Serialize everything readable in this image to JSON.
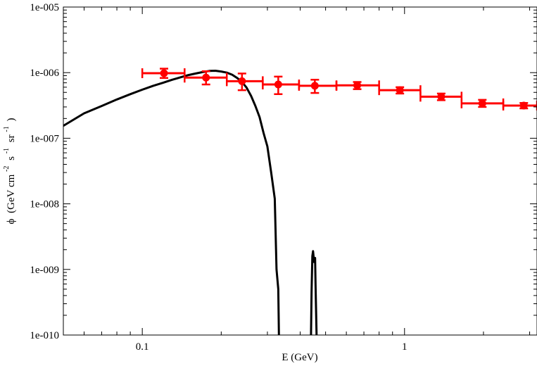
{
  "chart_data": {
    "type": "line",
    "xlabel": "E (GeV)",
    "ylabel": {
      "phi": "ϕ",
      "prefix": "(GeV cm",
      "exp1": "-2",
      "s": "s",
      "exp2": "-1",
      "sr": "sr",
      "exp3": "-1",
      "suffix": ")"
    },
    "xscale": "log",
    "yscale": "log",
    "xlim": [
      0.05,
      3.2
    ],
    "ylim": [
      1e-10,
      1e-05
    ],
    "grid": false,
    "legend": "none",
    "x_ticks": [
      {
        "value": 0.1,
        "label": "0.1"
      },
      {
        "value": 1,
        "label": "1"
      }
    ],
    "y_ticks": [
      {
        "value": 1e-10,
        "label": "1e-010"
      },
      {
        "value": 1e-09,
        "label": "1e-009"
      },
      {
        "value": 1e-08,
        "label": "1e-008"
      },
      {
        "value": 1e-07,
        "label": "1e-007"
      },
      {
        "value": 1e-06,
        "label": "1e-006"
      },
      {
        "value": 1e-05,
        "label": "1e-005"
      }
    ],
    "series": [
      {
        "kind": "line",
        "color": "#000000",
        "points": [
          [
            0.05,
            1.55e-07
          ],
          [
            0.06,
            2.4e-07
          ],
          [
            0.07,
            3.1e-07
          ],
          [
            0.08,
            3.9e-07
          ],
          [
            0.09,
            4.7e-07
          ],
          [
            0.1,
            5.5e-07
          ],
          [
            0.11,
            6.3e-07
          ],
          [
            0.12,
            7e-07
          ],
          [
            0.13,
            7.8e-07
          ],
          [
            0.14,
            8.5e-07
          ],
          [
            0.15,
            9.2e-07
          ],
          [
            0.16,
            9.7e-07
          ],
          [
            0.17,
            1.02e-06
          ],
          [
            0.18,
            1.06e-06
          ],
          [
            0.19,
            1.07e-06
          ],
          [
            0.2,
            1.04e-06
          ],
          [
            0.21,
            1e-06
          ],
          [
            0.22,
            9.3e-07
          ],
          [
            0.23,
            8.3e-07
          ],
          [
            0.24,
            7.2e-07
          ],
          [
            0.25,
            5.9e-07
          ],
          [
            0.26,
            4.4e-07
          ],
          [
            0.27,
            3.1e-07
          ],
          [
            0.28,
            2.1e-07
          ],
          [
            0.29,
            1.2e-07
          ],
          [
            0.3,
            7.5e-08
          ],
          [
            0.31,
            3e-08
          ],
          [
            0.32,
            1.2e-08
          ],
          [
            0.325,
            1e-09
          ],
          [
            0.33,
            5e-10
          ],
          [
            0.332,
            1e-10
          ]
        ]
      },
      {
        "kind": "line",
        "color": "#000000",
        "points": [
          [
            0.44,
            1e-10
          ],
          [
            0.442,
            4.5e-10
          ],
          [
            0.445,
            1.6e-09
          ],
          [
            0.448,
            1.9e-09
          ],
          [
            0.452,
            1.3e-09
          ],
          [
            0.456,
            1.5e-09
          ],
          [
            0.458,
            5.5e-10
          ],
          [
            0.462,
            1e-10
          ]
        ]
      },
      {
        "kind": "errorbar",
        "color": "#ff0000",
        "points": [
          {
            "x": 0.121,
            "xlo": 0.1,
            "xhi": 0.145,
            "y": 9.8e-07,
            "ylo": 8.3e-07,
            "yhi": 1.15e-06
          },
          {
            "x": 0.175,
            "xlo": 0.145,
            "xhi": 0.21,
            "y": 8.4e-07,
            "ylo": 6.6e-07,
            "yhi": 1.05e-06
          },
          {
            "x": 0.24,
            "xlo": 0.21,
            "xhi": 0.288,
            "y": 7.4e-07,
            "ylo": 5.4e-07,
            "yhi": 9.7e-07
          },
          {
            "x": 0.33,
            "xlo": 0.288,
            "xhi": 0.396,
            "y": 6.6e-07,
            "ylo": 4.7e-07,
            "yhi": 8.7e-07
          },
          {
            "x": 0.455,
            "xlo": 0.396,
            "xhi": 0.55,
            "y": 6.3e-07,
            "ylo": 4.9e-07,
            "yhi": 7.8e-07
          },
          {
            "x": 0.66,
            "xlo": 0.55,
            "xhi": 0.8,
            "y": 6.4e-07,
            "ylo": 5.6e-07,
            "yhi": 7.2e-07
          },
          {
            "x": 0.96,
            "xlo": 0.8,
            "xhi": 1.15,
            "y": 5.4e-07,
            "ylo": 4.8e-07,
            "yhi": 6e-07
          },
          {
            "x": 1.38,
            "xlo": 1.15,
            "xhi": 1.65,
            "y": 4.3e-07,
            "ylo": 3.8e-07,
            "yhi": 4.8e-07
          },
          {
            "x": 1.98,
            "xlo": 1.65,
            "xhi": 2.38,
            "y": 3.4e-07,
            "ylo": 3e-07,
            "yhi": 3.85e-07
          },
          {
            "x": 2.85,
            "xlo": 2.38,
            "xhi": 3.2,
            "y": 3.15e-07,
            "ylo": 2.85e-07,
            "yhi": 3.45e-07
          }
        ]
      }
    ]
  }
}
